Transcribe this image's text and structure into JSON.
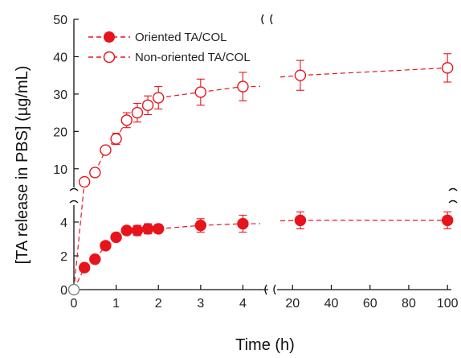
{
  "chart_data": {
    "type": "line",
    "xlabel": "Time (h)",
    "ylabel": "[TA release in PBS] (µg/mL)",
    "x_ticks_left": [
      "0",
      "1",
      "2",
      "3",
      "4"
    ],
    "x_ticks_right": [
      "20",
      "40",
      "60",
      "80",
      "100"
    ],
    "y_ticks_top": [
      "10",
      "20",
      "30",
      "40",
      "50"
    ],
    "y_ticks_bottom": [
      "0",
      "2",
      "4"
    ],
    "xlim_left": [
      0,
      4.6
    ],
    "xlim_right": [
      12,
      102
    ],
    "ylim_top": [
      5,
      50
    ],
    "ylim_bottom": [
      0,
      5
    ],
    "axis_breaks": true,
    "legend_position": "top-left",
    "series": [
      {
        "name": "Oriented TA/COL",
        "marker": "filled-circle",
        "color": "#e8141c",
        "points": [
          {
            "x": 0.0,
            "y": 0.0,
            "err": 0.0
          },
          {
            "x": 0.25,
            "y": 1.3,
            "err": 0.1
          },
          {
            "x": 0.5,
            "y": 1.8,
            "err": 0.1
          },
          {
            "x": 0.75,
            "y": 2.6,
            "err": 0.15
          },
          {
            "x": 1.0,
            "y": 3.1,
            "err": 0.2
          },
          {
            "x": 1.25,
            "y": 3.5,
            "err": 0.2
          },
          {
            "x": 1.5,
            "y": 3.5,
            "err": 0.3
          },
          {
            "x": 1.75,
            "y": 3.6,
            "err": 0.3
          },
          {
            "x": 2.0,
            "y": 3.6,
            "err": 0.25
          },
          {
            "x": 3.0,
            "y": 3.8,
            "err": 0.4
          },
          {
            "x": 4.0,
            "y": 3.9,
            "err": 0.5
          },
          {
            "x": 24.0,
            "y": 4.1,
            "err": 0.5
          },
          {
            "x": 100.0,
            "y": 4.1,
            "err": 0.5
          }
        ]
      },
      {
        "name": "Non-oriented TA/COL",
        "marker": "open-circle",
        "color": "#e8141c",
        "points": [
          {
            "x": 0.0,
            "y": 0.0,
            "err": 0.0
          },
          {
            "x": 0.25,
            "y": 6.5,
            "err": 0.6
          },
          {
            "x": 0.5,
            "y": 9.0,
            "err": 0.8
          },
          {
            "x": 0.75,
            "y": 15.0,
            "err": 1.0
          },
          {
            "x": 1.0,
            "y": 18.0,
            "err": 1.5
          },
          {
            "x": 1.25,
            "y": 23.0,
            "err": 2.0
          },
          {
            "x": 1.5,
            "y": 25.0,
            "err": 2.5
          },
          {
            "x": 1.75,
            "y": 27.0,
            "err": 2.5
          },
          {
            "x": 2.0,
            "y": 29.0,
            "err": 3.0
          },
          {
            "x": 3.0,
            "y": 30.5,
            "err": 3.5
          },
          {
            "x": 4.0,
            "y": 32.0,
            "err": 3.8
          },
          {
            "x": 24.0,
            "y": 35.0,
            "err": 4.0
          },
          {
            "x": 100.0,
            "y": 37.0,
            "err": 3.8
          }
        ]
      }
    ]
  }
}
